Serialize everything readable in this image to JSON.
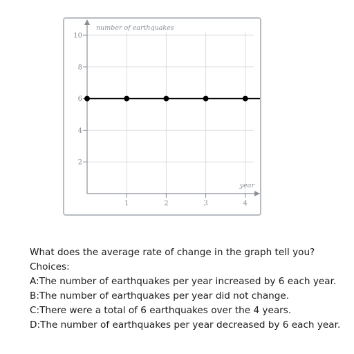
{
  "chart_data": {
    "type": "line",
    "x": [
      0,
      1,
      2,
      3,
      4
    ],
    "series": [
      {
        "values": [
          6,
          6,
          6,
          6,
          6
        ]
      }
    ],
    "xlabel": "year",
    "ylabel": "number of earthquakes",
    "xticks": [
      "1",
      "2",
      "3",
      "4"
    ],
    "yticks": [
      "2",
      "4",
      "6",
      "8",
      "10"
    ],
    "xlim": [
      0,
      4.5
    ],
    "ylim": [
      0,
      10
    ],
    "grid": true,
    "line_color": "#000000",
    "grid_color": "#d9dce0",
    "axis_color": "#8a8f96"
  },
  "question": {
    "text": "What does the average rate of change in the graph tell you?",
    "choices_label": "Choices:",
    "choices": [
      "A:The number of earthquakes per year increased by 6 each year.",
      "B:The number of earthquakes per year did not change.",
      "C:There were a total of 6 earthquakes over the 4 years.",
      "D:The number of earthquakes per year decreased by 6 each year."
    ]
  }
}
